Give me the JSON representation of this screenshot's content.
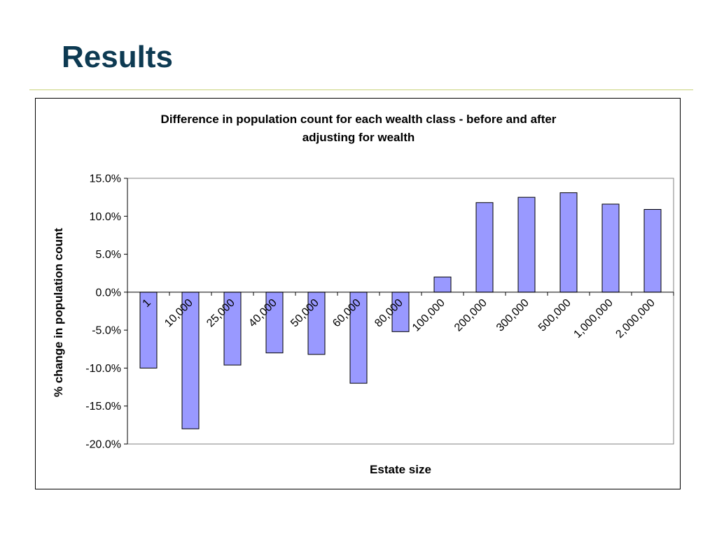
{
  "slide": {
    "title": "Results"
  },
  "colors": {
    "title": "#0d3a52",
    "rule": "#c8d27a",
    "bar_fill": "#9999ff",
    "bar_stroke": "#000000",
    "plot_border": "#808080"
  },
  "chart_data": {
    "type": "bar",
    "title_lines": [
      "Difference in population count for each wealth class - before and after",
      "adjusting for wealth"
    ],
    "xlabel": "Estate size",
    "ylabel": "% change in population count",
    "categories": [
      "1",
      "10,000",
      "25,000",
      "40,000",
      "50,000",
      "60,000",
      "80,000",
      "100,000",
      "200,000",
      "300,000",
      "500,000",
      "1,000,000",
      "2,000,000"
    ],
    "values": [
      -10.0,
      -18.0,
      -9.6,
      -8.0,
      -8.2,
      -12.0,
      -5.2,
      2.0,
      11.8,
      12.5,
      13.1,
      11.6,
      10.9
    ],
    "ylim": [
      -20,
      15
    ],
    "yticks": [
      15,
      10,
      5,
      0,
      -5,
      -10,
      -15,
      -20
    ],
    "ytick_labels": [
      "15.0%",
      "10.0%",
      "5.0%",
      "0.0%",
      "-5.0%",
      "-10.0%",
      "-15.0%",
      "-20.0%"
    ],
    "grid": false,
    "legend": "none"
  }
}
